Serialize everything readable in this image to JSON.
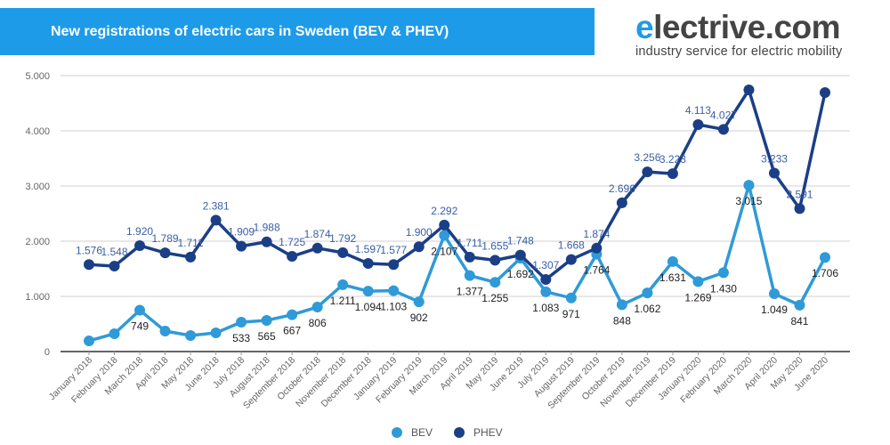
{
  "header": {
    "title": "New registrations of electric cars in Sweden (BEV & PHEV)"
  },
  "logo": {
    "first_letter": "e",
    "rest": "lectrive.com",
    "tagline": "industry service for electric mobility"
  },
  "chart_data": {
    "type": "line",
    "title": "New registrations of electric cars in Sweden (BEV & PHEV)",
    "categories": [
      "January 2018",
      "February 2018",
      "March 2018",
      "April 2018",
      "May 2018",
      "June 2018",
      "July 2018",
      "August 2018",
      "September 2018",
      "October 2018",
      "November 2018",
      "December 2018",
      "January 2019",
      "February 2019",
      "March 2019",
      "April 2019",
      "May 2019",
      "June 2019",
      "July 2019",
      "August 2019",
      "September 2019",
      "October 2019",
      "November 2019",
      "December 2019",
      "January 2020",
      "February 2020",
      "March 2020",
      "April 2020",
      "May 2020",
      "June 2020"
    ],
    "ylim": [
      0,
      5000
    ],
    "yticks": [
      0,
      1000,
      2000,
      3000,
      4000,
      5000
    ],
    "ytick_labels": [
      "0",
      "1.000",
      "2.000",
      "3.000",
      "4.000",
      "5.000"
    ],
    "grid": true,
    "legend": "bottom",
    "series": [
      {
        "name": "BEV",
        "color": "#2f9ad8",
        "label_color": "#222222",
        "values": [
          194,
          323,
          749,
          371,
          290,
          339,
          533,
          565,
          667,
          806,
          1211,
          1094,
          1103,
          902,
          2107,
          1377,
          1255,
          1692,
          1083,
          971,
          1764,
          848,
          1062,
          1631,
          1269,
          1430,
          3015,
          1049,
          841,
          1706
        ],
        "labels": [
          "",
          "",
          "749",
          "",
          "",
          "",
          "533",
          "565",
          "667",
          "806",
          "1.211",
          "1.094",
          "1.103",
          "902",
          "2.107",
          "1.377",
          "1.255",
          "1.692",
          "1.083",
          "971",
          "1.764",
          "848",
          "1.062",
          "1.631",
          "1.269",
          "1.430",
          "3.015",
          "1.049",
          "841",
          "1.706"
        ]
      },
      {
        "name": "PHEV",
        "color": "#1b3f86",
        "label_color": "#3a5fa6",
        "values": [
          1576,
          1548,
          1920,
          1789,
          1711,
          2381,
          1909,
          1988,
          1725,
          1874,
          1792,
          1597,
          1577,
          1900,
          2292,
          1711,
          1655,
          1748,
          1307,
          1668,
          1874,
          2696,
          3256,
          3223,
          4113,
          4027,
          4742,
          3233,
          2591,
          4694
        ],
        "labels": [
          "1.576",
          "1.548",
          "1.920",
          "1.789",
          "1.711",
          "2.381",
          "1.909",
          "1.988",
          "1.725",
          "1.874",
          "1.792",
          "1.597",
          "1.577",
          "1.900",
          "2.292",
          "1.711",
          "1.655",
          "1.748",
          "1.307",
          "1.668",
          "1.874",
          "2.696",
          "3.256",
          "3.223",
          "4.113",
          "4.027",
          "",
          "3.233",
          "2.591",
          ""
        ]
      }
    ]
  }
}
